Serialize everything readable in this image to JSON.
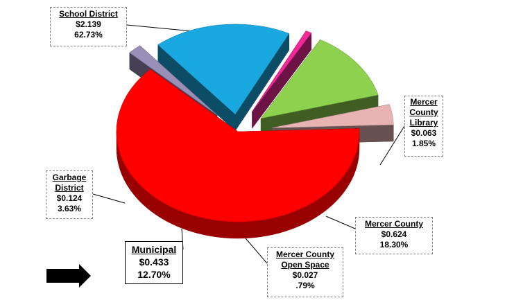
{
  "chart_data": {
    "type": "pie",
    "slices": [
      {
        "key": "school",
        "label": "School District",
        "value": 2.139,
        "amount": "$2.139",
        "percent": "62.73%",
        "color": "#FF0000"
      },
      {
        "key": "library",
        "label": "Mercer County Library",
        "value": 0.063,
        "amount": "$0.063",
        "percent": "1.85%",
        "color": "#9A8FB8"
      },
      {
        "key": "county",
        "label": "Mercer County",
        "value": 0.624,
        "amount": "$0.624",
        "percent": "18.30%",
        "color": "#1AA8E0"
      },
      {
        "key": "open",
        "label": "Mercer County Open Space",
        "value": 0.027,
        "amount": "$0.027",
        "percent": ".79%",
        "color": "#F02899"
      },
      {
        "key": "muni",
        "label": "Municipal",
        "value": 0.433,
        "amount": "$0.433",
        "percent": "12.70%",
        "color": "#8ED14E"
      },
      {
        "key": "garbage",
        "label": "Garbage District",
        "value": 0.124,
        "amount": "$0.124",
        "percent": "3.63%",
        "color": "#E7B3B3"
      }
    ]
  },
  "labels": {
    "school": {
      "name": "School District",
      "amount": "$2.139",
      "percent": "62.73%"
    },
    "library": {
      "name1": "Mercer",
      "name2": "County",
      "name3": "Library",
      "amount": "$0.063",
      "percent": "1.85%"
    },
    "county": {
      "name": "Mercer County",
      "amount": "$0.624",
      "percent": "18.30%"
    },
    "open": {
      "name1": "Mercer County",
      "name2": "Open Space",
      "amount": "$0.027",
      "percent": ".79%"
    },
    "muni": {
      "name": "Municipal",
      "amount": "$0.433",
      "percent": "12.70%"
    },
    "garbage": {
      "name1": "Garbage",
      "name2": "District",
      "amount": "$0.124",
      "percent": "3.63%"
    }
  },
  "arrow": {
    "icon": "right-arrow-icon",
    "color": "#000000"
  }
}
